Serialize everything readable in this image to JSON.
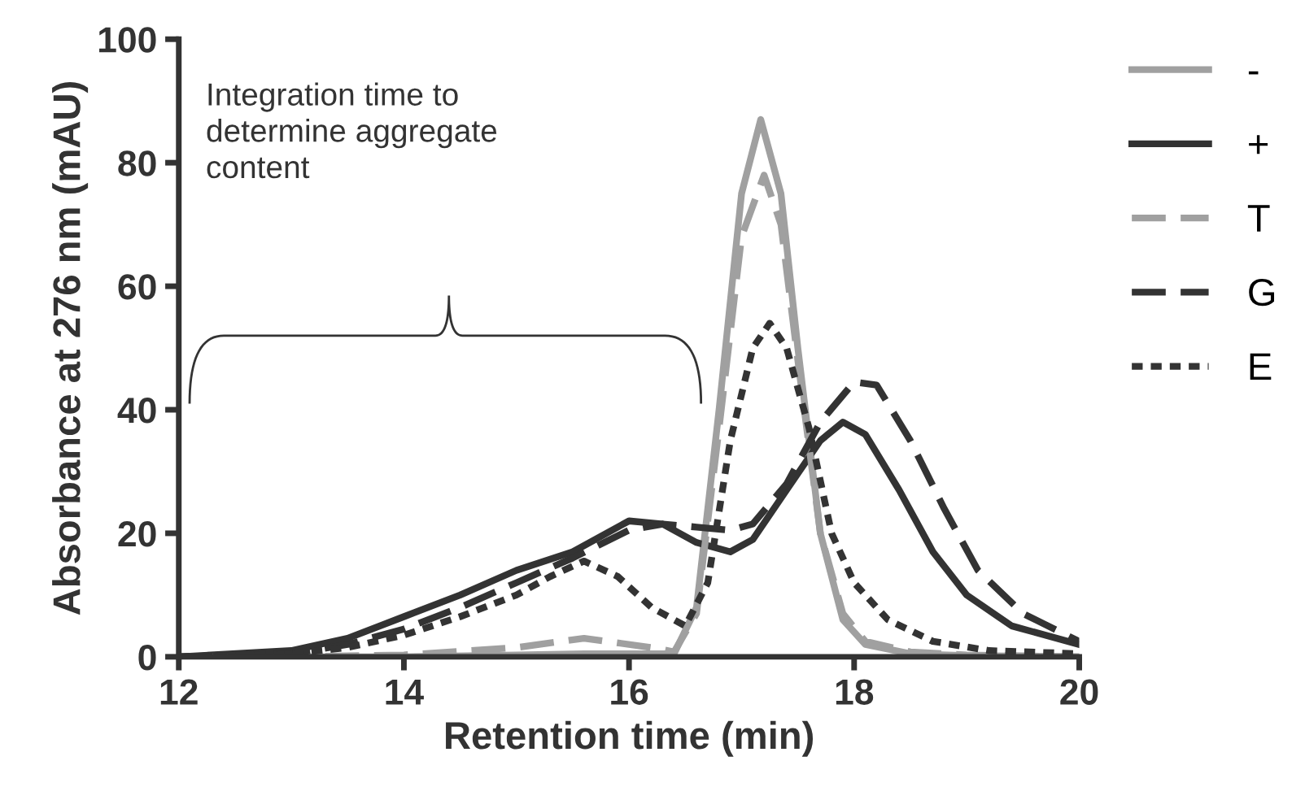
{
  "chart_data": {
    "type": "line",
    "xlabel": "Retention time (min)",
    "ylabel": "Absorbance at 276 nm (mAU)",
    "xlim": [
      12,
      20
    ],
    "ylim": [
      0,
      100
    ],
    "xticks": [
      12,
      14,
      16,
      18,
      20
    ],
    "yticks": [
      0,
      20,
      40,
      60,
      80,
      100
    ],
    "grid": false,
    "legend": "right",
    "annotations": [
      "Integration time to\ndetermine aggregate\ncontent"
    ],
    "series": [
      {
        "name": "-",
        "color": "#a0a0a0",
        "line_style": "solid",
        "x": [
          12,
          13,
          14,
          15,
          15.6,
          16.2,
          16.4,
          16.6,
          16.8,
          17.0,
          17.17,
          17.35,
          17.5,
          17.7,
          17.9,
          18.1,
          18.5,
          19,
          20
        ],
        "values": [
          0,
          0,
          0,
          0.3,
          0.5,
          0.5,
          0.5,
          8,
          40,
          75,
          87,
          75,
          50,
          20,
          6,
          2,
          0.5,
          0.2,
          0
        ]
      },
      {
        "name": "+",
        "color": "#333333",
        "line_style": "solid",
        "x": [
          12,
          13,
          13.5,
          14,
          14.5,
          15,
          15.5,
          16,
          16.3,
          16.6,
          16.9,
          17.1,
          17.4,
          17.7,
          17.9,
          18.1,
          18.4,
          18.7,
          19,
          19.4,
          20
        ],
        "values": [
          0,
          1,
          3,
          6.5,
          10,
          14,
          17,
          22,
          21.5,
          18.5,
          17,
          19,
          27,
          35,
          38,
          36,
          27,
          17,
          10,
          5,
          2
        ]
      },
      {
        "name": "T",
        "color": "#a0a0a0",
        "line_style": "dashed",
        "x": [
          12,
          13,
          14,
          15,
          15.6,
          16.2,
          16.4,
          16.6,
          16.8,
          17.0,
          17.2,
          17.35,
          17.5,
          17.7,
          17.9,
          18.1,
          18.5,
          19,
          20
        ],
        "values": [
          0,
          0,
          0.3,
          1.5,
          3,
          1.5,
          0.8,
          7,
          37,
          68,
          78,
          70,
          48,
          20,
          7,
          2.5,
          0.8,
          0.3,
          0
        ]
      },
      {
        "name": "G",
        "color": "#333333",
        "line_style": "dashed",
        "x": [
          12,
          13,
          13.5,
          14,
          14.5,
          15,
          15.5,
          16,
          16.3,
          16.6,
          16.9,
          17.1,
          17.4,
          17.7,
          18.0,
          18.2,
          18.5,
          18.8,
          19.1,
          19.5,
          20
        ],
        "values": [
          0,
          0.5,
          2,
          4.5,
          8,
          12,
          16,
          20.5,
          21.5,
          21,
          20.5,
          21.5,
          28,
          38,
          44.5,
          44,
          35,
          24,
          14,
          7,
          2.5
        ]
      },
      {
        "name": "E",
        "color": "#333333",
        "line_style": "dotted",
        "x": [
          12,
          13,
          13.5,
          14,
          14.5,
          15,
          15.3,
          15.6,
          15.9,
          16.2,
          16.5,
          16.7,
          16.9,
          17.1,
          17.25,
          17.4,
          17.6,
          17.8,
          18.0,
          18.3,
          18.7,
          19.2,
          20
        ],
        "values": [
          0,
          0.5,
          1.5,
          3.5,
          6.5,
          10,
          13,
          15.5,
          13,
          8,
          5,
          12,
          35,
          50,
          54,
          50,
          37,
          20,
          12,
          6,
          2.5,
          1,
          0.5
        ]
      }
    ]
  }
}
